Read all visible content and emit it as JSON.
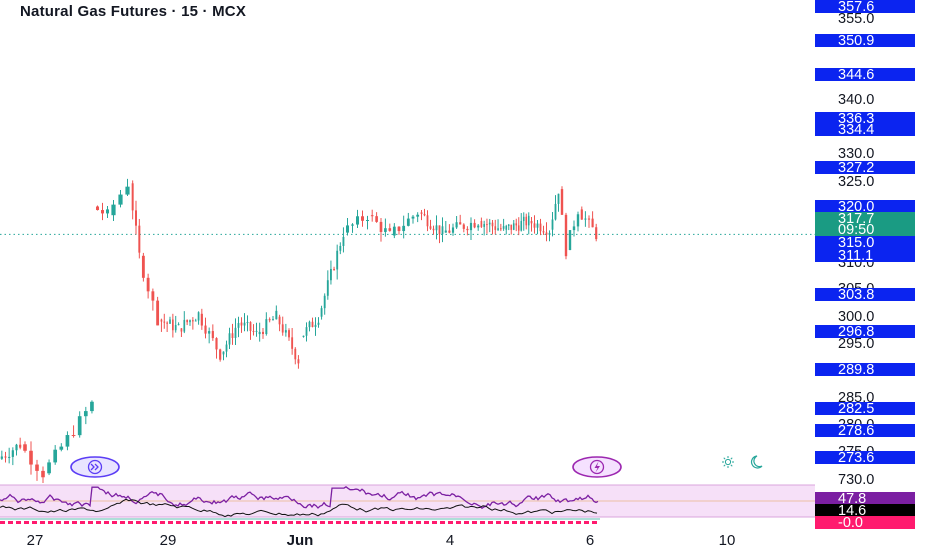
{
  "header": {
    "title": "Natural Gas Futures · 15 · MCX"
  },
  "colors": {
    "up": "#26a69a",
    "down": "#ef5350",
    "label_blue": "#0b24f0",
    "current_green": "#1a9b83",
    "rsi_purple": "#7b1fa2",
    "rsi_band": "#f3d6f5",
    "bottom_pink": "#ff1a6e",
    "grid_dot": "#26a69a"
  },
  "price_axis": {
    "ticks": [
      "355.0",
      "340.0",
      "330.0",
      "325.0",
      "320.0",
      "315.0",
      "310.0",
      "305.0",
      "300.0",
      "295.0",
      "285.0",
      "280.0",
      "275.0",
      "730.0"
    ],
    "labels": [
      {
        "text": "357.6",
        "kind": "blue",
        "value": 357.6
      },
      {
        "text": "350.9",
        "kind": "blue",
        "value": 350.9
      },
      {
        "text": "344.6",
        "kind": "blue",
        "value": 344.6
      },
      {
        "text": "336.3",
        "kind": "blue",
        "value": 336.3
      },
      {
        "text": "334.4",
        "kind": "blue",
        "value": 334.4
      },
      {
        "text": "327.2",
        "kind": "blue",
        "value": 327.2
      },
      {
        "text": "320.0",
        "kind": "blue",
        "value": 320.0
      },
      {
        "text": "317.7",
        "kind": "green",
        "value": 317.7
      },
      {
        "text": "09:50",
        "kind": "green",
        "value": 315.7
      },
      {
        "text": "315.0",
        "kind": "blue",
        "value": 315.0
      },
      {
        "text": "311.1",
        "kind": "blue",
        "value": 311.1
      },
      {
        "text": "303.8",
        "kind": "blue",
        "value": 303.8
      },
      {
        "text": "296.8",
        "kind": "blue",
        "value": 296.8
      },
      {
        "text": "289.8",
        "kind": "blue",
        "value": 289.8
      },
      {
        "text": "282.5",
        "kind": "blue",
        "value": 282.5
      },
      {
        "text": "278.6",
        "kind": "blue",
        "value": 278.6
      },
      {
        "text": "273.6",
        "kind": "blue",
        "value": 273.6
      }
    ]
  },
  "indicator_axis": {
    "labels": [
      {
        "text": "47.8",
        "kind": "purple"
      },
      {
        "text": "14.6",
        "kind": "black"
      },
      {
        "text": "-0.0",
        "kind": "pink"
      }
    ]
  },
  "time_axis": {
    "labels": [
      "27",
      "29",
      "Jun",
      "4",
      "6",
      "10"
    ]
  },
  "icons": {
    "left_badge": "forward-double-arrow-icon",
    "right_badge": "lightning-icon",
    "theme": "sun-moon-icon"
  },
  "chart_data": {
    "type": "candlestick",
    "title": "Natural Gas Futures · 15 · MCX",
    "y_unit": "price",
    "last_price": 317.7,
    "countdown": "09:50",
    "segments": [
      {
        "start": 279.0,
        "end": 281.5,
        "lo": 277.5,
        "hi": 283.0,
        "bars": 6
      },
      {
        "start": 281.5,
        "end": 276.5,
        "lo": 273.5,
        "hi": 282.0,
        "bars": 4
      },
      {
        "start": 276.5,
        "end": 288.5,
        "lo": 275.0,
        "hi": 290.8,
        "bars": 8
      },
      {
        "start": 322.5,
        "end": 321.0,
        "lo": 320.0,
        "hi": 324.0,
        "bars": 3
      },
      {
        "start": 321.0,
        "end": 326.5,
        "lo": 320.0,
        "hi": 328.8,
        "bars": 3
      },
      {
        "start": 326.5,
        "end": 314.0,
        "lo": 312.5,
        "hi": 327.0,
        "bars": 3
      },
      {
        "start": 314.0,
        "end": 303.0,
        "lo": 302.0,
        "hi": 314.5,
        "bars": 4
      },
      {
        "start": 303.0,
        "end": 301.5,
        "lo": 299.8,
        "hi": 304.0,
        "bars": 7
      },
      {
        "start": 301.5,
        "end": 304.0,
        "lo": 300.0,
        "hi": 305.5,
        "bars": 7
      },
      {
        "start": 304.0,
        "end": 297.0,
        "lo": 293.5,
        "hi": 305.0,
        "bars": 6
      },
      {
        "start": 297.0,
        "end": 302.5,
        "lo": 296.0,
        "hi": 303.5,
        "bars": 6
      },
      {
        "start": 302.5,
        "end": 300.5,
        "lo": 299.5,
        "hi": 304.5,
        "bars": 6
      },
      {
        "start": 300.5,
        "end": 303.5,
        "lo": 299.0,
        "hi": 305.5,
        "bars": 6
      },
      {
        "start": 303.5,
        "end": 296.0,
        "lo": 293.5,
        "hi": 304.5,
        "bars": 7
      },
      {
        "start": 300.0,
        "end": 303.5,
        "lo": 299.0,
        "hi": 304.5,
        "bars": 6
      },
      {
        "start": 303.5,
        "end": 318.0,
        "lo": 303.0,
        "hi": 319.0,
        "bars": 8
      },
      {
        "start": 318.0,
        "end": 321.0,
        "lo": 316.0,
        "hi": 322.0,
        "bars": 5
      },
      {
        "start": 321.0,
        "end": 317.5,
        "lo": 316.0,
        "hi": 322.0,
        "bars": 5
      },
      {
        "start": 317.5,
        "end": 321.5,
        "lo": 317.0,
        "hi": 322.0,
        "bars": 6
      },
      {
        "start": 321.5,
        "end": 318.0,
        "lo": 312.5,
        "hi": 324.5,
        "bars": 8
      },
      {
        "start": 318.0,
        "end": 320.0,
        "lo": 316.0,
        "hi": 323.0,
        "bars": 10
      },
      {
        "start": 320.0,
        "end": 318.5,
        "lo": 317.0,
        "hi": 322.0,
        "bars": 9
      },
      {
        "start": 318.5,
        "end": 320.0,
        "lo": 317.0,
        "hi": 321.5,
        "bars": 10
      },
      {
        "start": 320.0,
        "end": 318.5,
        "lo": 316.5,
        "hi": 321.0,
        "bars": 7
      },
      {
        "start": 318.5,
        "end": 325.5,
        "lo": 317.0,
        "hi": 327.0,
        "bars": 3
      },
      {
        "start": 325.5,
        "end": 315.0,
        "lo": 312.5,
        "hi": 326.0,
        "bars": 2
      },
      {
        "start": 315.0,
        "end": 322.0,
        "lo": 314.0,
        "hi": 323.5,
        "bars": 3
      },
      {
        "start": 322.0,
        "end": 317.7,
        "lo": 316.5,
        "hi": 322.5,
        "bars": 5
      }
    ],
    "indicator": {
      "rsi_level_upper": 47.8,
      "lower_value": 14.6,
      "bottom_value": -0.0
    }
  }
}
